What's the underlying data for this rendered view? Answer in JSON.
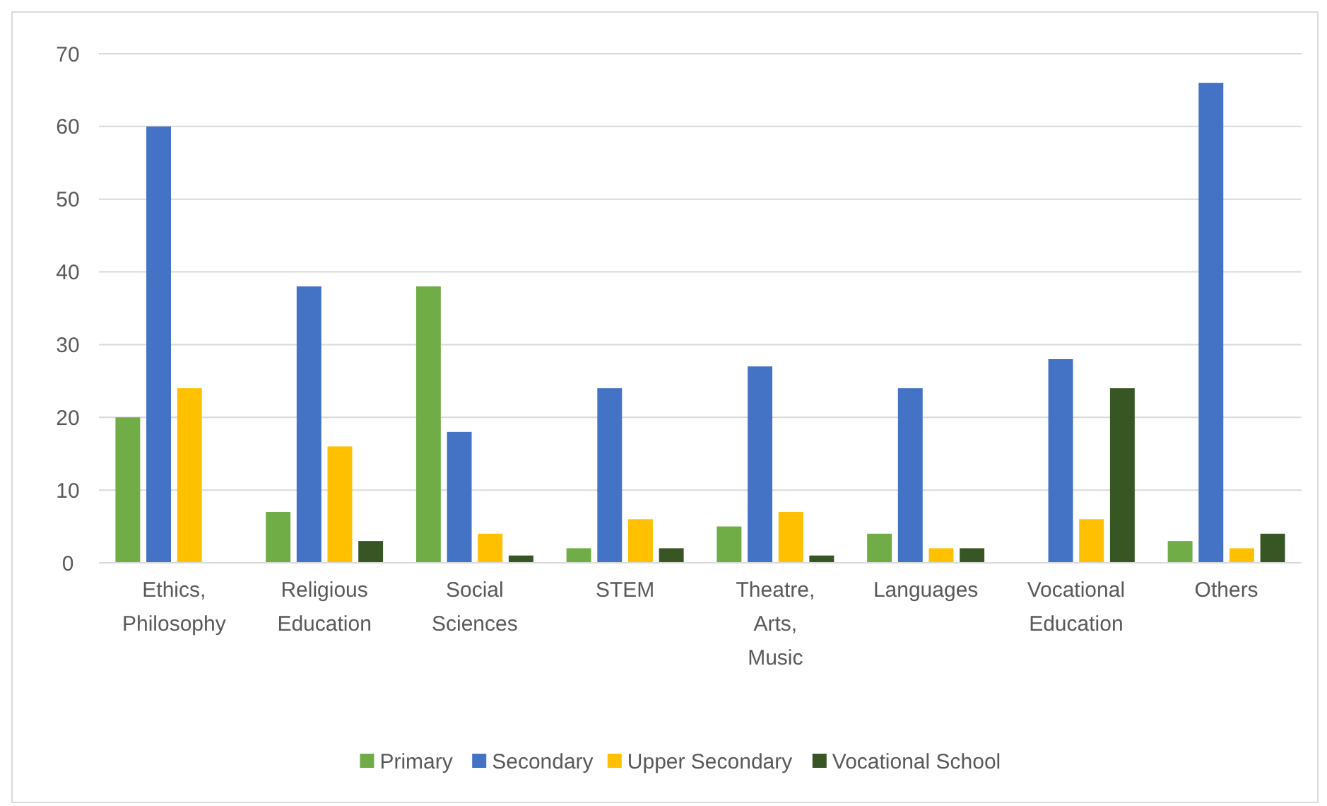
{
  "chart_data": {
    "type": "bar",
    "categories": [
      "Ethics, Philosophy",
      "Religious Education",
      "Social Sciences",
      "STEM",
      "Theatre, Arts, Music",
      "Languages",
      "Vocational Education",
      "Others"
    ],
    "series": [
      {
        "name": "Primary",
        "color": "#70ad47",
        "values": [
          20,
          7,
          38,
          2,
          5,
          4,
          0,
          3
        ]
      },
      {
        "name": "Secondary",
        "color": "#4472c4",
        "values": [
          60,
          38,
          18,
          24,
          27,
          24,
          28,
          66
        ]
      },
      {
        "name": "Upper Secondary",
        "color": "#ffc000",
        "values": [
          24,
          16,
          4,
          6,
          7,
          2,
          6,
          2
        ]
      },
      {
        "name": "Vocational School",
        "color": "#375623",
        "values": [
          0,
          3,
          1,
          2,
          1,
          2,
          24,
          4
        ]
      }
    ],
    "ylim": [
      0,
      70
    ],
    "yticks": [
      0,
      10,
      20,
      30,
      40,
      50,
      60,
      70
    ],
    "grid": "y",
    "legend": "bottom"
  }
}
